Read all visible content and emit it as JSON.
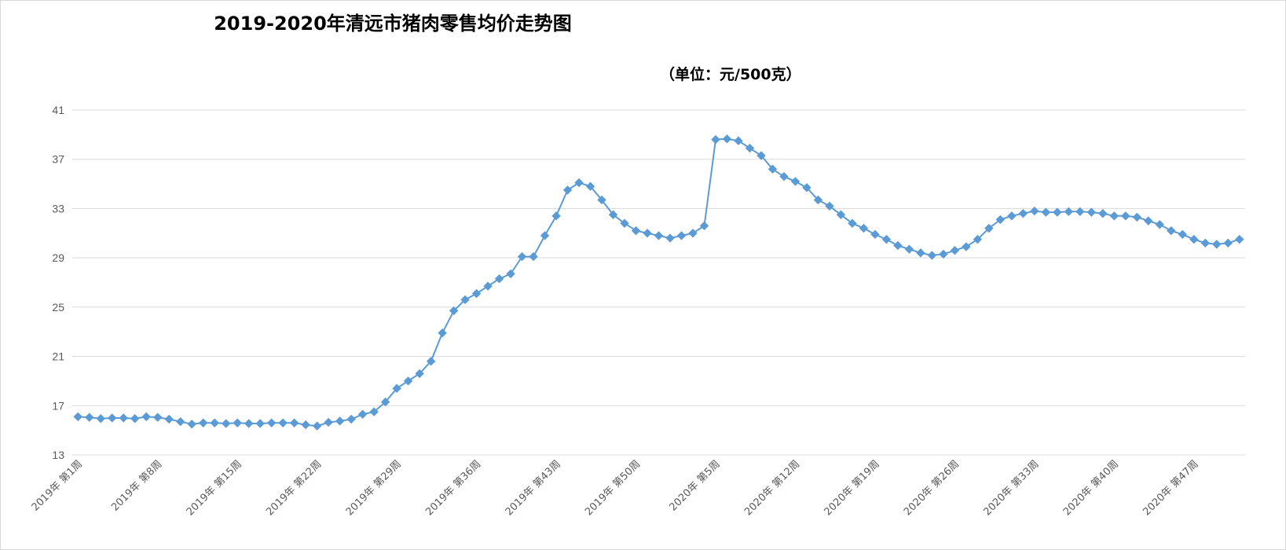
{
  "chart_data": {
    "type": "line",
    "title": "2019-2020年清远市猪肉零售均价走势图",
    "unit_label": "（单位：元/500克）",
    "xlabel": "",
    "ylabel": "",
    "ylim": [
      13,
      41
    ],
    "yticks": [
      13,
      17,
      21,
      25,
      29,
      33,
      37,
      41
    ],
    "grid": true,
    "legend": "none",
    "colors": {
      "line": "#5b9bd5",
      "grid": "#d9d9d9",
      "axis": "#d9d9d9"
    },
    "x_tick_labels": [
      "2019年 第1周",
      "2019年 第8周",
      "2019年 第15周",
      "2019年 第22周",
      "2019年 第29周",
      "2019年 第36周",
      "2019年 第43周",
      "2019年 第50周",
      "2020年 第5周",
      "2020年 第12周",
      "2020年 第19周",
      "2020年 第26周",
      "2020年 第33周",
      "2020年 第40周",
      "2020年 第47周"
    ],
    "x_tick_every": 7,
    "series": [
      {
        "values": [
          16.1,
          16.05,
          15.95,
          16.0,
          16.0,
          15.95,
          16.1,
          16.05,
          15.9,
          15.7,
          15.5,
          15.6,
          15.6,
          15.55,
          15.6,
          15.55,
          15.55,
          15.6,
          15.6,
          15.6,
          15.45,
          15.35,
          15.65,
          15.75,
          15.9,
          16.3,
          16.5,
          17.3,
          18.4,
          19.0,
          19.6,
          20.6,
          22.9,
          24.7,
          25.6,
          26.1,
          26.7,
          27.3,
          27.7,
          29.1,
          29.1,
          30.8,
          32.4,
          34.5,
          35.1,
          34.8,
          33.7,
          32.5,
          31.8,
          31.2,
          31.0,
          30.8,
          30.6,
          30.8,
          31.0,
          31.6,
          38.6,
          38.65,
          38.5,
          37.9,
          37.3,
          36.2,
          35.6,
          35.2,
          34.7,
          33.7,
          33.2,
          32.5,
          31.8,
          31.4,
          30.9,
          30.5,
          30.0,
          29.7,
          29.4,
          29.2,
          29.3,
          29.6,
          29.9,
          30.5,
          31.4,
          32.1,
          32.4,
          32.6,
          32.8,
          32.7,
          32.7,
          32.75,
          32.75,
          32.7,
          32.6,
          32.4,
          32.4,
          32.3,
          32.0,
          31.7,
          31.2,
          30.9,
          30.5,
          30.2,
          30.1,
          30.2,
          30.5
        ]
      }
    ]
  }
}
